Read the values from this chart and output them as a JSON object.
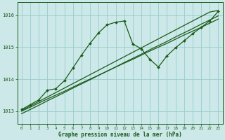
{
  "title": "Graphe pression niveau de la mer (hPa)",
  "bg_color": "#cce8e8",
  "plot_bg_color": "#cce8e8",
  "grid_color": "#99cccc",
  "line_color": "#1a5c1a",
  "xlim": [
    -0.5,
    23.5
  ],
  "ylim": [
    1012.6,
    1016.4
  ],
  "yticks": [
    1013,
    1014,
    1015,
    1016
  ],
  "xticks": [
    0,
    1,
    2,
    3,
    4,
    5,
    6,
    7,
    8,
    9,
    10,
    11,
    12,
    13,
    14,
    15,
    16,
    17,
    18,
    19,
    20,
    21,
    22,
    23
  ],
  "series_jagged": [
    1013.05,
    1013.2,
    1013.35,
    1013.65,
    1013.7,
    1013.95,
    1014.35,
    1014.75,
    1015.12,
    1015.45,
    1015.7,
    1015.78,
    1015.82,
    1015.1,
    1014.95,
    1014.62,
    1014.38,
    1014.73,
    1014.98,
    1015.2,
    1015.42,
    1015.62,
    1015.82,
    1016.12
  ],
  "series_trend1": [
    1012.92,
    1013.05,
    1013.18,
    1013.32,
    1013.45,
    1013.58,
    1013.72,
    1013.85,
    1013.98,
    1014.12,
    1014.25,
    1014.38,
    1014.52,
    1014.65,
    1014.78,
    1014.92,
    1015.05,
    1015.18,
    1015.32,
    1015.45,
    1015.58,
    1015.72,
    1015.85,
    1015.98
  ],
  "series_trend2": [
    1013.0,
    1013.12,
    1013.25,
    1013.38,
    1013.5,
    1013.62,
    1013.75,
    1013.88,
    1014.0,
    1014.12,
    1014.25,
    1014.38,
    1014.5,
    1014.62,
    1014.75,
    1014.88,
    1015.0,
    1015.12,
    1015.25,
    1015.38,
    1015.5,
    1015.62,
    1015.75,
    1015.88
  ],
  "series_trend3": [
    1013.02,
    1013.16,
    1013.3,
    1013.44,
    1013.58,
    1013.72,
    1013.86,
    1014.0,
    1014.14,
    1014.28,
    1014.42,
    1014.56,
    1014.7,
    1014.84,
    1014.98,
    1015.12,
    1015.26,
    1015.4,
    1015.54,
    1015.68,
    1015.82,
    1015.96,
    1016.1,
    1016.15
  ]
}
